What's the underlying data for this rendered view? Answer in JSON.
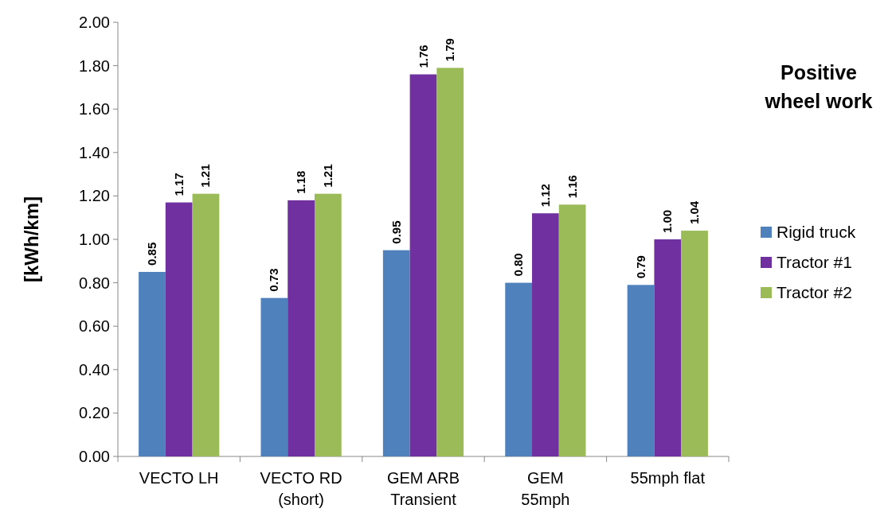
{
  "chart_data": {
    "type": "bar",
    "title": "Positive wheel work",
    "ylabel": "[kWh/km]",
    "categories": [
      "VECTO LH",
      "VECTO RD\n(short)",
      "GEM ARB\nTransient",
      "GEM\n55mph",
      "55mph flat"
    ],
    "series": [
      {
        "name": "Rigid truck",
        "color": "#4f81bd",
        "values": [
          0.85,
          0.73,
          0.95,
          0.8,
          0.79
        ],
        "value_labels": [
          "0.85",
          "0.73",
          "0.95",
          "0.80",
          "0.79"
        ]
      },
      {
        "name": "Tractor #1",
        "color": "#7030a0",
        "values": [
          1.17,
          1.18,
          1.76,
          1.12,
          1.0
        ],
        "value_labels": [
          "1.17",
          "1.18",
          "1.76",
          "1.12",
          "1.00"
        ]
      },
      {
        "name": "Tractor #2",
        "color": "#9bbb59",
        "values": [
          1.21,
          1.21,
          1.79,
          1.16,
          1.04
        ],
        "value_labels": [
          "1.21",
          "1.21",
          "1.79",
          "1.16",
          "1.04"
        ]
      }
    ],
    "ylim": [
      0,
      2
    ],
    "yticks": [
      {
        "value": 0,
        "label": "0.00"
      },
      {
        "value": 0.2,
        "label": "0.20"
      },
      {
        "value": 0.4,
        "label": "0.40"
      },
      {
        "value": 0.6,
        "label": "0.60"
      },
      {
        "value": 0.8,
        "label": "0.80"
      },
      {
        "value": 1,
        "label": "1.00"
      },
      {
        "value": 1.2,
        "label": "1.20"
      },
      {
        "value": 1.4,
        "label": "1.40"
      },
      {
        "value": 1.6,
        "label": "1.60"
      },
      {
        "value": 1.8,
        "label": "1.80"
      },
      {
        "value": 2,
        "label": "2.00"
      }
    ],
    "legend": "right",
    "grid": false
  }
}
